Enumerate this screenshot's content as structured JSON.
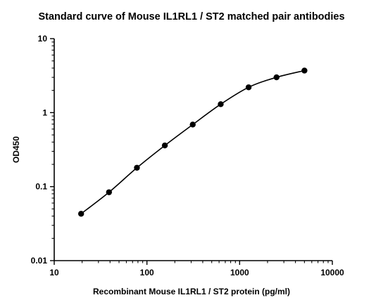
{
  "chart_data": {
    "type": "scatter",
    "title": "Standard curve of Mouse IL1RL1 / ST2 matched pair antibodies",
    "xlabel": "Recombinant Mouse IL1RL1 / ST2 protein (pg/ml)",
    "ylabel": "OD450",
    "x_scale": "log",
    "y_scale": "log",
    "xlim": [
      10,
      10000
    ],
    "ylim": [
      0.01,
      10
    ],
    "x_ticks": [
      10,
      100,
      1000,
      10000
    ],
    "x_tick_labels": [
      "10",
      "100",
      "1000",
      "10000"
    ],
    "y_ticks": [
      0.01,
      0.1,
      1,
      10
    ],
    "y_tick_labels": [
      "0.01",
      "0.1",
      "1",
      "10"
    ],
    "grid": false,
    "legend": "none",
    "fit_curve": true,
    "series": [
      {
        "x": [
          19.5,
          39,
          78,
          156,
          312,
          625,
          1250,
          2500,
          5000
        ],
        "y": [
          0.043,
          0.084,
          0.18,
          0.36,
          0.69,
          1.3,
          2.2,
          3.0,
          3.7
        ],
        "color": "#000000"
      }
    ]
  }
}
